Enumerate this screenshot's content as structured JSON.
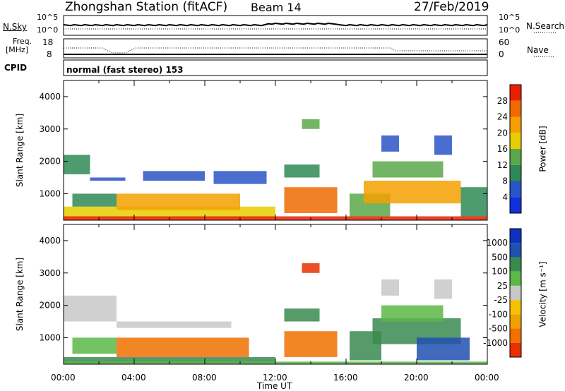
{
  "header": {
    "station": "Zhongshan Station (fitACF)",
    "beam": "Beam 14",
    "date": "27/Feb/2019"
  },
  "nsky_panel": {
    "left_label": "N.Sky",
    "left_ticks": [
      "10^5",
      "10^0"
    ],
    "right_label": "N.Search",
    "right_ticks": [
      "10^5",
      "10^0"
    ]
  },
  "freq_panel": {
    "left_label_1": "Freq.",
    "left_label_2": "[MHz]",
    "left_ticks": [
      "18",
      "8"
    ],
    "right_label": "Nave",
    "right_ticks": [
      "60",
      "0"
    ]
  },
  "cpid": {
    "label": "CPID",
    "mode": "normal (fast stereo) 153"
  },
  "time_axis": {
    "label": "Time UT",
    "ticks": [
      "00:00",
      "04:00",
      "08:00",
      "12:00",
      "16:00",
      "20:00",
      "00:00"
    ]
  },
  "colors": {
    "power": [
      "#1030e0",
      "#2a55c8",
      "#2e8a55",
      "#5aa84a",
      "#e6cc00",
      "#f5a000",
      "#f06a00",
      "#e82000"
    ],
    "velocity": [
      "#1030c0",
      "#2050b0",
      "#3a8a50",
      "#5cb848",
      "#c8c8c8",
      "#f5c000",
      "#f0a000",
      "#f07000",
      "#e83000"
    ]
  },
  "chart_data": [
    {
      "type": "heatmap",
      "title": "",
      "ylabel": "Slant Range [km]",
      "xlabel": "",
      "ylim": [
        180,
        4500
      ],
      "y_ticks": [
        1000,
        2000,
        3000,
        4000
      ],
      "colorbar": {
        "label": "Power [dB]",
        "ticks": [
          "4",
          "8",
          "12",
          "16",
          "20",
          "24",
          "28"
        ],
        "range": [
          0,
          32
        ]
      },
      "regions": [
        {
          "t0": 0.0,
          "t1": 1.5,
          "r0": 1600,
          "r1": 2200,
          "level": 2
        },
        {
          "t0": 1.5,
          "t1": 3.5,
          "r0": 1400,
          "r1": 1500,
          "level": 1
        },
        {
          "t0": 0.0,
          "t1": 12.0,
          "r0": 250,
          "r1": 600,
          "level": 4
        },
        {
          "t0": 0.5,
          "t1": 3.0,
          "r0": 600,
          "r1": 1000,
          "level": 2
        },
        {
          "t0": 3.0,
          "t1": 10.0,
          "r0": 500,
          "r1": 1000,
          "level": 5
        },
        {
          "t0": 4.5,
          "t1": 8.0,
          "r0": 1400,
          "r1": 1700,
          "level": 1
        },
        {
          "t0": 8.5,
          "t1": 11.5,
          "r0": 1300,
          "r1": 1700,
          "level": 1
        },
        {
          "t0": 12.5,
          "t1": 15.5,
          "r0": 400,
          "r1": 1200,
          "level": 6
        },
        {
          "t0": 12.5,
          "t1": 14.5,
          "r0": 1500,
          "r1": 1900,
          "level": 2
        },
        {
          "t0": 13.5,
          "t1": 14.5,
          "r0": 3000,
          "r1": 3300,
          "level": 3
        },
        {
          "t0": 16.2,
          "t1": 18.5,
          "r0": 300,
          "r1": 1000,
          "level": 3
        },
        {
          "t0": 17.0,
          "t1": 22.5,
          "r0": 700,
          "r1": 1400,
          "level": 5
        },
        {
          "t0": 17.5,
          "t1": 21.5,
          "r0": 1500,
          "r1": 2000,
          "level": 3
        },
        {
          "t0": 18.0,
          "t1": 19.0,
          "r0": 2300,
          "r1": 2800,
          "level": 1
        },
        {
          "t0": 21.0,
          "t1": 22.0,
          "r0": 2200,
          "r1": 2800,
          "level": 1
        },
        {
          "t0": 22.5,
          "t1": 24.0,
          "r0": 300,
          "r1": 1200,
          "level": 2
        },
        {
          "t0": 0.0,
          "t1": 24.0,
          "r0": 180,
          "r1": 300,
          "level": 7
        }
      ]
    },
    {
      "type": "heatmap",
      "title": "",
      "ylabel": "Slant Range [km]",
      "xlabel": "Time UT",
      "ylim": [
        180,
        4500
      ],
      "y_ticks": [
        1000,
        2000,
        3000,
        4000
      ],
      "colorbar": {
        "label": "Velocity [m s⁻¹]",
        "ticks": [
          "1000",
          "500",
          "100",
          "25",
          "-25",
          "-100",
          "-500",
          "-1000"
        ],
        "range": [
          -1500,
          1500
        ]
      },
      "regions": [
        {
          "t0": 0.0,
          "t1": 3.0,
          "r0": 1500,
          "r1": 2300,
          "level": 4
        },
        {
          "t0": 3.0,
          "t1": 9.5,
          "r0": 1300,
          "r1": 1500,
          "level": 4
        },
        {
          "t0": 0.5,
          "t1": 3.0,
          "r0": 500,
          "r1": 1000,
          "level": 3
        },
        {
          "t0": 3.0,
          "t1": 10.5,
          "r0": 400,
          "r1": 1000,
          "level": 7
        },
        {
          "t0": 0.0,
          "t1": 12.0,
          "r0": 200,
          "r1": 400,
          "level": 2
        },
        {
          "t0": 12.5,
          "t1": 15.5,
          "r0": 400,
          "r1": 1200,
          "level": 7
        },
        {
          "t0": 12.5,
          "t1": 14.5,
          "r0": 1500,
          "r1": 1900,
          "level": 2
        },
        {
          "t0": 13.5,
          "t1": 14.5,
          "r0": 3000,
          "r1": 3300,
          "level": 8
        },
        {
          "t0": 16.2,
          "t1": 18.0,
          "r0": 300,
          "r1": 1200,
          "level": 2
        },
        {
          "t0": 17.5,
          "t1": 22.5,
          "r0": 800,
          "r1": 1600,
          "level": 2
        },
        {
          "t0": 18.0,
          "t1": 21.5,
          "r0": 1500,
          "r1": 2000,
          "level": 3
        },
        {
          "t0": 20.0,
          "t1": 23.0,
          "r0": 300,
          "r1": 1000,
          "level": 1
        },
        {
          "t0": 21.0,
          "t1": 22.0,
          "r0": 2200,
          "r1": 2800,
          "level": 4
        },
        {
          "t0": 18.0,
          "t1": 19.0,
          "r0": 2300,
          "r1": 2800,
          "level": 4
        },
        {
          "t0": 0.0,
          "t1": 24.0,
          "r0": 180,
          "r1": 260,
          "level": 3
        }
      ]
    }
  ]
}
